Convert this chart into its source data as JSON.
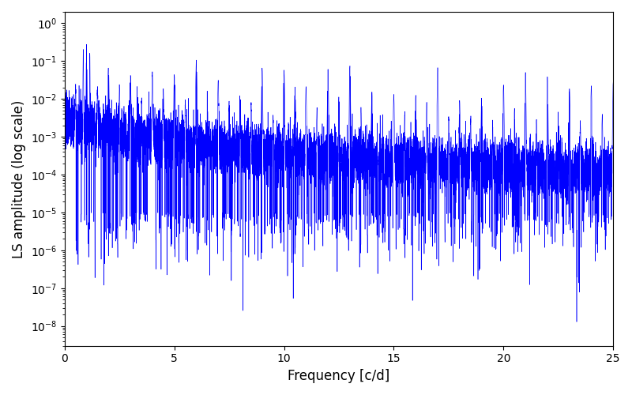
{
  "title": "",
  "xlabel": "Frequency [c/d]",
  "ylabel": "LS amplitude (log scale)",
  "line_color": "#0000ff",
  "xlim": [
    0,
    25
  ],
  "ylim": [
    3e-09,
    2.0
  ],
  "freq_min": 0.0,
  "freq_max": 25.0,
  "n_points": 12000,
  "seed": 7,
  "background_color": "#ffffff",
  "figsize": [
    8.0,
    5.0
  ],
  "dpi": 100
}
